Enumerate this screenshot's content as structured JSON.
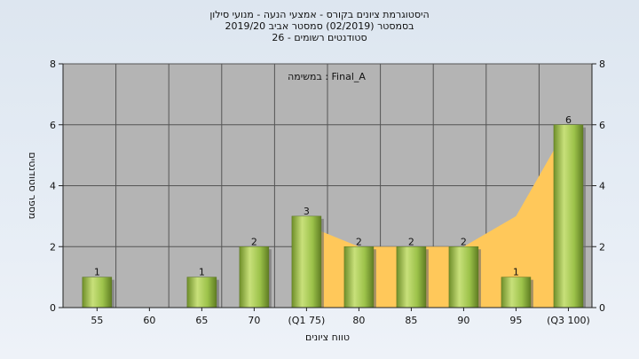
{
  "title_lines": [
    "היסטוגרמת ציונים בקורס - אמצעי הנעה - מנועי סילון",
    "בסמסטר  (02/2019)  סמסטר אביב 2019/20",
    "סטודנטים רשומים - 26"
  ],
  "colors": {
    "plot_bg": "#b4b4b4",
    "bar": "#9cc24a",
    "area": "#ffc85a",
    "grid": "#555555"
  },
  "chart_data": {
    "type": "bar",
    "title": "היסטוגרמת ציונים בקורס - אמצעי הנעה - מנועי סילון",
    "annotation": "במשימה : Final_A",
    "xlabel": "טווח ציונים",
    "ylabel": "מספר סטודנטים",
    "categories": [
      "55",
      "60",
      "65",
      "70",
      "(Q1 75)",
      "80",
      "85",
      "90",
      "95",
      "(Q3 100)"
    ],
    "values": [
      1,
      0,
      1,
      2,
      3,
      2,
      2,
      2,
      1,
      6
    ],
    "data_labels": [
      "1",
      "",
      "1",
      "2",
      "3",
      "2",
      "2",
      "2",
      "1",
      "6"
    ],
    "area_values": [
      null,
      null,
      null,
      null,
      2.7,
      2,
      2,
      2,
      3,
      6
    ],
    "ylim": [
      0,
      8
    ],
    "yticks": [
      "0",
      "2",
      "4",
      "6",
      "8"
    ],
    "grid": true,
    "secondary_y_axis": true
  }
}
